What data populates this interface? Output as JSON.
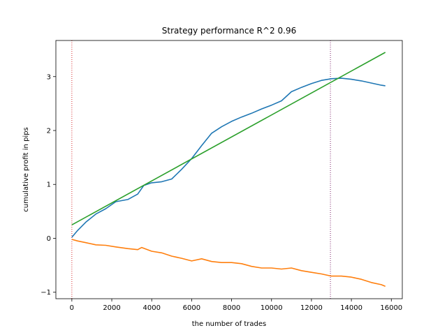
{
  "chart_data": {
    "type": "line",
    "title": "Strategy performance R^2 0.96",
    "xlabel": "the number of trades",
    "ylabel": "cumulative profit in pips",
    "xlim": [
      -800,
      16550
    ],
    "ylim": [
      -1.12,
      3.67
    ],
    "x_ticks": [
      0,
      2000,
      4000,
      6000,
      8000,
      10000,
      12000,
      14000,
      16000
    ],
    "y_ticks": [
      -1,
      0,
      1,
      2,
      3
    ],
    "grid": false,
    "legend": "none",
    "vlines": [
      {
        "x": 0,
        "color": "#d62728",
        "style": "dotted"
      },
      {
        "x": 12950,
        "color": "#7b1f6a",
        "style": "dotted"
      }
    ],
    "series": [
      {
        "color": "#1f77b4",
        "x": [
          0,
          300,
          700,
          1200,
          1700,
          2200,
          2800,
          3300,
          3600,
          4000,
          4500,
          5000,
          5500,
          6000,
          6500,
          7000,
          7500,
          8000,
          8500,
          9000,
          9500,
          10000,
          10500,
          11000,
          11500,
          12000,
          12500,
          13000,
          13500,
          14000,
          14500,
          15000,
          15500,
          15700
        ],
        "y": [
          0.02,
          0.15,
          0.3,
          0.45,
          0.55,
          0.68,
          0.72,
          0.82,
          0.98,
          1.03,
          1.05,
          1.1,
          1.28,
          1.48,
          1.72,
          1.95,
          2.07,
          2.17,
          2.25,
          2.32,
          2.4,
          2.47,
          2.55,
          2.72,
          2.8,
          2.87,
          2.93,
          2.96,
          2.97,
          2.95,
          2.92,
          2.88,
          2.84,
          2.83
        ]
      },
      {
        "color": "#ff7f0e",
        "x": [
          0,
          300,
          700,
          1200,
          1700,
          2200,
          2800,
          3300,
          3500,
          4000,
          4500,
          5000,
          5500,
          6000,
          6500,
          7000,
          7500,
          8000,
          8500,
          9000,
          9500,
          10000,
          10500,
          11000,
          11500,
          12000,
          12500,
          13000,
          13500,
          14000,
          14500,
          15000,
          15500,
          15700
        ],
        "y": [
          -0.02,
          -0.05,
          -0.08,
          -0.12,
          -0.13,
          -0.16,
          -0.19,
          -0.21,
          -0.17,
          -0.24,
          -0.27,
          -0.33,
          -0.37,
          -0.42,
          -0.38,
          -0.43,
          -0.45,
          -0.45,
          -0.47,
          -0.52,
          -0.55,
          -0.55,
          -0.57,
          -0.55,
          -0.6,
          -0.63,
          -0.66,
          -0.7,
          -0.7,
          -0.72,
          -0.76,
          -0.82,
          -0.86,
          -0.89
        ]
      },
      {
        "color": "#2ca02c",
        "x": [
          0,
          15700
        ],
        "y": [
          0.25,
          3.45
        ]
      }
    ]
  }
}
